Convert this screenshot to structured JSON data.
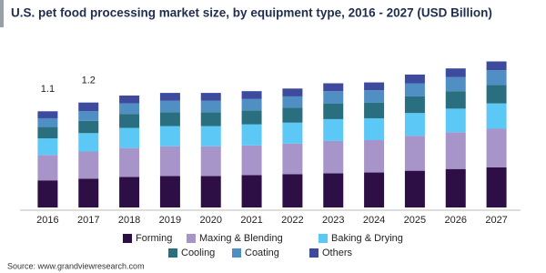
{
  "chart_data": {
    "type": "stacked-bar",
    "title": "U.S. pet food processing market size, by equipment type, 2016 - 2027 (USD Billion)",
    "source": "Source: www.grandviewresearch.com",
    "categories": [
      "2016",
      "2017",
      "2018",
      "2019",
      "2020",
      "2021",
      "2022",
      "2023",
      "2024",
      "2025",
      "2026",
      "2027"
    ],
    "series": [
      {
        "name": "Forming",
        "color": "#2e0f45",
        "values": [
          0.31,
          0.33,
          0.35,
          0.36,
          0.36,
          0.37,
          0.38,
          0.39,
          0.4,
          0.42,
          0.44,
          0.46
        ]
      },
      {
        "name": "Maxing & Blending",
        "color": "#a794c8",
        "values": [
          0.29,
          0.31,
          0.33,
          0.34,
          0.34,
          0.34,
          0.35,
          0.37,
          0.37,
          0.4,
          0.42,
          0.44
        ]
      },
      {
        "name": "Baking & Drying",
        "color": "#5bc8f5",
        "values": [
          0.19,
          0.21,
          0.23,
          0.23,
          0.23,
          0.24,
          0.24,
          0.25,
          0.25,
          0.26,
          0.27,
          0.29
        ]
      },
      {
        "name": "Cooling",
        "color": "#2a6f80",
        "values": [
          0.13,
          0.14,
          0.16,
          0.16,
          0.16,
          0.16,
          0.17,
          0.18,
          0.18,
          0.19,
          0.2,
          0.21
        ]
      },
      {
        "name": "Coating",
        "color": "#4f8fc4",
        "values": [
          0.1,
          0.11,
          0.12,
          0.13,
          0.13,
          0.13,
          0.13,
          0.14,
          0.14,
          0.15,
          0.16,
          0.17
        ]
      },
      {
        "name": "Others",
        "color": "#3e4a9e",
        "values": [
          0.08,
          0.1,
          0.09,
          0.09,
          0.09,
          0.09,
          0.09,
          0.09,
          0.09,
          0.1,
          0.1,
          0.1
        ]
      }
    ],
    "totals": [
      1.1,
      1.2,
      null,
      null,
      null,
      null,
      null,
      null,
      null,
      null,
      null,
      null
    ],
    "ylim": [
      0,
      1.8
    ]
  }
}
